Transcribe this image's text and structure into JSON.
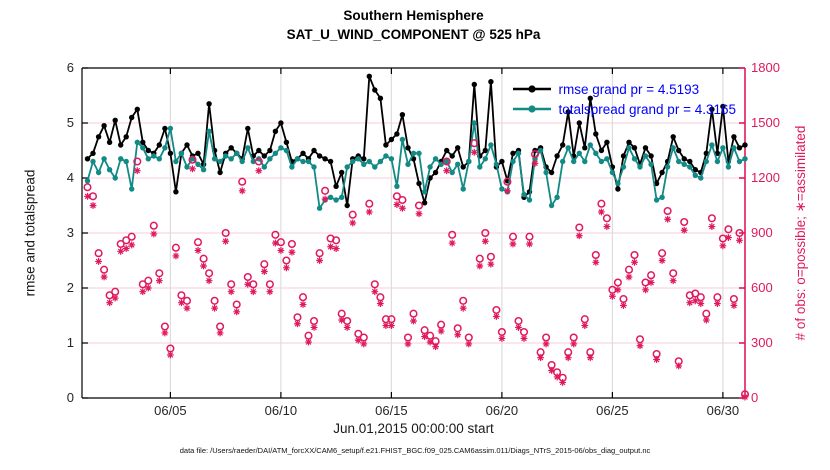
{
  "title": {
    "line1": "Southern Hemisphere",
    "line2": "SAT_U_WIND_COMPONENT @ 525 hPa"
  },
  "footer": {
    "data_file_note": "data file: /Users/raeder/DAI/ATM_forcXX/CAM6_setup/f.e21.FHIST_BGC.f09_025.CAM6assim.011/Diags_NTrS_2015-06/obs_diag_output.nc"
  },
  "colors": {
    "rmse": "#000000",
    "totalspread": "#128a86",
    "obs": "#e0195f",
    "legend_text": "#0000ff",
    "grid_horizontal": "#f6d7e0",
    "grid_vertical": "#dddddd",
    "axis": "#000000",
    "tick_label": "#262626"
  },
  "chart_data": {
    "type": "line",
    "title": [
      "Southern Hemisphere",
      "SAT_U_WIND_COMPONENT @ 525 hPa"
    ],
    "xlabel": "Jun.01,2015 00:00:00 start",
    "ylabel_left": "rmse and totalspread",
    "ylabel_right": "# of obs: o=possible; ∗=assimilated",
    "grid": true,
    "legend_position": "top-right-inside",
    "x_range_days": [
      0,
      30
    ],
    "x_first_day": 0.25,
    "x_step_days": 0.25,
    "x_ticks": [
      {
        "day": 4,
        "label": "06/05"
      },
      {
        "day": 9,
        "label": "06/10"
      },
      {
        "day": 14,
        "label": "06/15"
      },
      {
        "day": 19,
        "label": "06/20"
      },
      {
        "day": 24,
        "label": "06/25"
      },
      {
        "day": 29,
        "label": "06/30"
      }
    ],
    "ylim_left": [
      0,
      6
    ],
    "y_ticks_left": [
      0,
      1,
      2,
      3,
      4,
      5,
      6
    ],
    "ylim_right": [
      0,
      1800
    ],
    "y_ticks_right": [
      0,
      300,
      600,
      900,
      1200,
      1500,
      1800
    ],
    "rmse_grand_prior": 4.5193,
    "totalspread_grand_prior": 4.3165,
    "series": [
      {
        "name": "rmse",
        "legend": "rmse grand pr = 4.5193",
        "axis": "left",
        "style": "line-dot",
        "color": "#000000",
        "values": [
          4.35,
          4.45,
          4.75,
          4.95,
          4.65,
          5.05,
          4.6,
          4.75,
          5.1,
          5.25,
          4.65,
          4.5,
          4.45,
          4.6,
          4.9,
          4.45,
          3.75,
          4.45,
          4.6,
          4.4,
          4.45,
          4.25,
          5.35,
          4.5,
          4.1,
          4.45,
          4.55,
          4.45,
          4.35,
          4.9,
          4.4,
          4.5,
          4.4,
          4.5,
          4.85,
          5.0,
          4.65,
          4.3,
          4.35,
          4.45,
          4.35,
          4.5,
          4.4,
          4.35,
          4.3,
          3.85,
          4.1,
          3.5,
          4.35,
          4.4,
          4.35,
          5.85,
          5.6,
          5.45,
          4.6,
          4.7,
          4.8,
          5.15,
          4.55,
          4.35,
          3.9,
          3.55,
          4.0,
          4.1,
          4.3,
          4.5,
          4.4,
          4.55,
          4.2,
          4.3,
          5.7,
          4.4,
          4.5,
          5.75,
          4.2,
          4.3,
          3.95,
          4.45,
          4.5,
          3.65,
          3.75,
          4.5,
          4.55,
          4.2,
          4.1,
          4.4,
          4.6,
          5.2,
          4.4,
          5.0,
          4.55,
          5.45,
          4.8,
          4.5,
          4.65,
          4.2,
          3.8,
          4.4,
          4.65,
          4.55,
          4.25,
          4.55,
          4.4,
          3.9,
          4.1,
          4.3,
          4.75,
          4.5,
          4.35,
          4.3,
          4.15,
          4.1,
          4.45,
          5.25,
          4.45,
          5.3,
          4.3,
          4.75,
          4.55,
          4.6
        ]
      },
      {
        "name": "totalspread",
        "legend": "totalspread grand pr = 4.3165",
        "axis": "left",
        "style": "line-dot",
        "color": "#128a86",
        "values": [
          3.95,
          4.3,
          4.1,
          4.35,
          4.15,
          4.0,
          4.35,
          4.3,
          3.8,
          4.65,
          4.55,
          4.35,
          4.4,
          4.35,
          4.55,
          4.9,
          4.3,
          4.45,
          4.2,
          4.35,
          4.25,
          4.15,
          4.85,
          4.35,
          4.3,
          4.4,
          4.35,
          4.45,
          4.3,
          4.55,
          4.3,
          4.35,
          4.2,
          4.35,
          4.45,
          4.55,
          4.5,
          4.2,
          4.35,
          4.3,
          4.3,
          4.2,
          3.45,
          3.6,
          3.65,
          3.6,
          3.65,
          4.2,
          4.3,
          4.35,
          4.25,
          4.3,
          4.2,
          4.3,
          4.4,
          4.35,
          3.85,
          4.7,
          4.25,
          4.45,
          4.45,
          3.75,
          4.2,
          4.35,
          4.25,
          4.3,
          4.1,
          4.25,
          3.8,
          4.3,
          5.0,
          4.2,
          4.35,
          4.6,
          4.25,
          3.8,
          3.75,
          4.3,
          4.45,
          3.7,
          3.6,
          4.35,
          4.5,
          4.1,
          3.5,
          3.65,
          4.3,
          4.55,
          4.3,
          4.45,
          4.3,
          4.6,
          4.45,
          4.3,
          4.35,
          4.1,
          3.9,
          4.2,
          4.55,
          4.35,
          4.2,
          4.4,
          4.25,
          3.6,
          3.65,
          4.2,
          4.55,
          4.3,
          4.25,
          4.2,
          4.05,
          4.0,
          4.3,
          4.6,
          4.3,
          4.55,
          4.2,
          4.55,
          4.3,
          4.35
        ]
      },
      {
        "name": "obs_possible",
        "legend": null,
        "axis": "right",
        "style": "open-circle",
        "color": "#e0195f",
        "values": [
          1150,
          1100,
          790,
          700,
          560,
          580,
          840,
          860,
          880,
          1290,
          620,
          640,
          940,
          680,
          390,
          270,
          820,
          560,
          530,
          1300,
          850,
          760,
          680,
          530,
          390,
          900,
          620,
          510,
          1180,
          660,
          620,
          1290,
          730,
          620,
          890,
          850,
          750,
          840,
          440,
          550,
          340,
          420,
          790,
          1130,
          870,
          860,
          460,
          420,
          1000,
          350,
          330,
          1060,
          620,
          550,
          430,
          430,
          1100,
          1080,
          330,
          460,
          1050,
          370,
          340,
          310,
          400,
          1290,
          890,
          380,
          530,
          330,
          1390,
          760,
          900,
          770,
          480,
          360,
          1180,
          880,
          420,
          360,
          880,
          1330,
          250,
          330,
          180,
          140,
          110,
          250,
          330,
          930,
          430,
          250,
          780,
          1060,
          980,
          590,
          630,
          540,
          700,
          780,
          320,
          630,
          670,
          240,
          790,
          1020,
          680,
          200,
          960,
          560,
          570,
          550,
          460,
          980,
          550,
          870,
          920,
          540,
          900,
          20
        ]
      },
      {
        "name": "obs_assimilated",
        "legend": null,
        "axis": "right",
        "style": "asterisk",
        "color": "#e0195f",
        "values": [
          1100,
          1050,
          745,
          660,
          520,
          545,
          800,
          815,
          835,
          1240,
          580,
          600,
          895,
          640,
          355,
          235,
          775,
          520,
          490,
          1250,
          805,
          720,
          640,
          490,
          355,
          855,
          580,
          470,
          1130,
          620,
          580,
          1240,
          690,
          580,
          845,
          805,
          710,
          795,
          405,
          510,
          305,
          385,
          750,
          1085,
          825,
          815,
          425,
          385,
          955,
          315,
          295,
          1015,
          580,
          515,
          395,
          395,
          1055,
          1035,
          295,
          420,
          1005,
          335,
          305,
          280,
          365,
          1240,
          845,
          345,
          490,
          295,
          1340,
          720,
          855,
          730,
          445,
          325,
          1130,
          840,
          385,
          325,
          840,
          1280,
          220,
          295,
          150,
          115,
          85,
          220,
          295,
          885,
          395,
          220,
          740,
          1015,
          935,
          555,
          590,
          505,
          660,
          740,
          285,
          590,
          630,
          210,
          750,
          975,
          640,
          175,
          915,
          520,
          530,
          515,
          425,
          935,
          515,
          830,
          875,
          505,
          860,
          5
        ]
      }
    ]
  }
}
